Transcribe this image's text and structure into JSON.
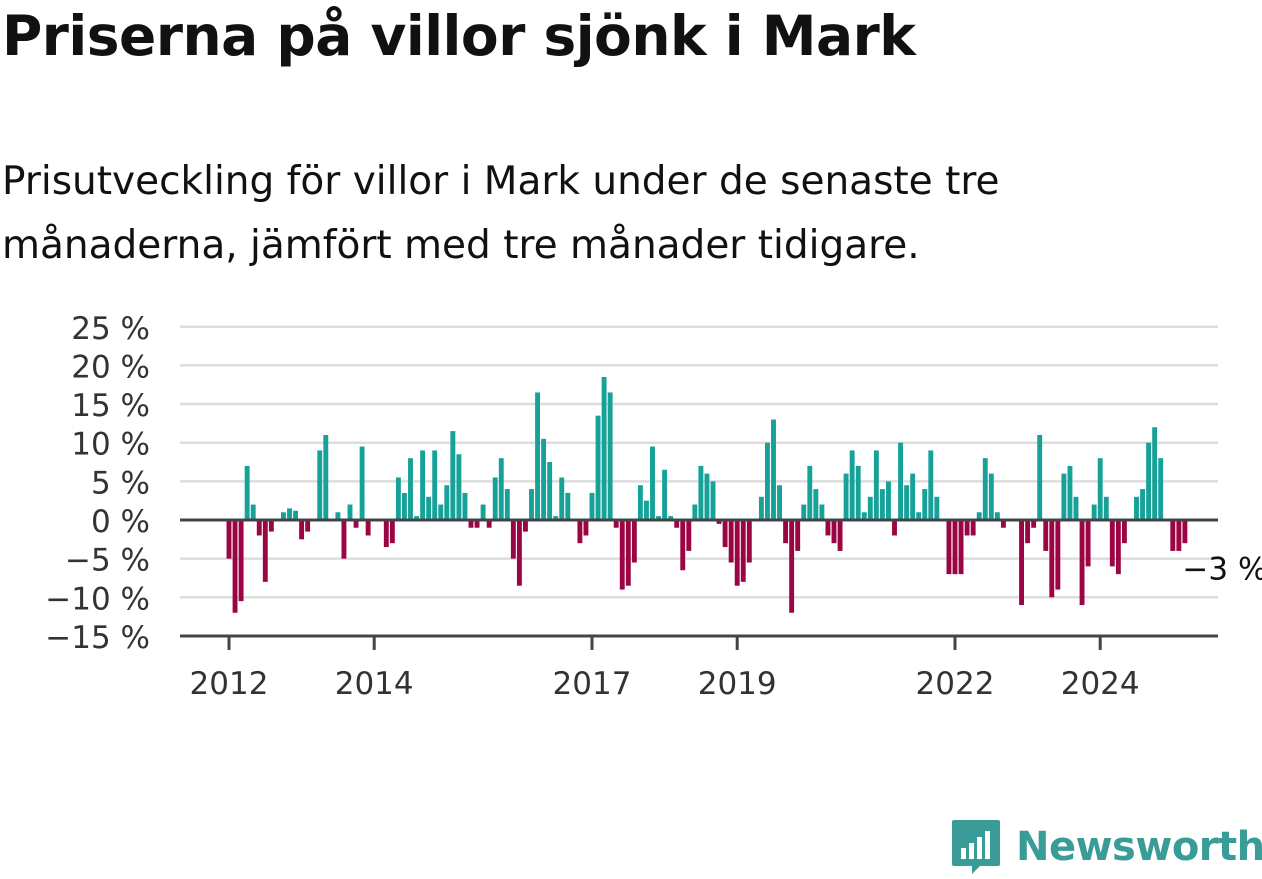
{
  "title": "Priserna på villor sjönk i Mark",
  "subtitle": "Prisutveckling för villor i Mark under de senaste tre månaderna, jämfört med tre månader tidigare.",
  "brand": {
    "name": "Newsworthy",
    "color": "#3a9c97"
  },
  "colors": {
    "positive": "#16a199",
    "negative": "#9b0544",
    "grid": "#dddddd",
    "axis": "#444444"
  },
  "chart_data": {
    "type": "bar",
    "x_ticks": [
      "2012",
      "2014",
      "2017",
      "2019",
      "2022",
      "2024"
    ],
    "y_ticks": [
      "25 %",
      "20 %",
      "15 %",
      "10 %",
      "5 %",
      "0 %",
      "−5 %",
      "−10 %",
      "−15 %"
    ],
    "ylim": [
      -15,
      25
    ],
    "grid": true,
    "last_label": "−3 %",
    "start": "2012-01",
    "frequency": "monthly",
    "values": [
      -5,
      -12,
      -10.5,
      7,
      2,
      -2,
      -8,
      -1.5,
      0,
      1,
      1.5,
      1.2,
      -2.5,
      -1.5,
      0,
      9,
      11,
      0,
      1,
      -5,
      2,
      -1,
      9.5,
      -2,
      0,
      0,
      -3.5,
      -3,
      5.5,
      3.5,
      8,
      0.5,
      9,
      3,
      9,
      2,
      4.5,
      11.5,
      8.5,
      3.5,
      -1,
      -1,
      2,
      -1,
      5.5,
      8,
      4,
      -5,
      -8.5,
      -1.5,
      4,
      16.5,
      10.5,
      7.5,
      0.5,
      5.5,
      3.5,
      0,
      -3,
      -2,
      3.5,
      13.5,
      18.5,
      16.5,
      -1,
      -9,
      -8.5,
      -5.5,
      4.5,
      2.5,
      9.5,
      0.5,
      6.5,
      0.5,
      -1,
      -6.5,
      -4,
      2,
      7,
      6,
      5,
      -0.5,
      -3.5,
      -5.5,
      -8.5,
      -8,
      -5.5,
      0,
      3,
      10,
      13,
      4.5,
      -3,
      -12,
      -4,
      2,
      7,
      4,
      2,
      -2,
      -3,
      -4,
      6,
      9,
      7,
      1,
      3,
      9,
      4,
      5,
      -2,
      10,
      4.5,
      6,
      1,
      4,
      9,
      3,
      0,
      -7,
      -7,
      -7,
      -2,
      -2,
      1,
      8,
      6,
      1,
      -1,
      0,
      0,
      -11,
      -3,
      -1,
      11,
      -4,
      -10,
      -9,
      6,
      7,
      3,
      -11,
      -6,
      2,
      8,
      3,
      -6,
      -7,
      -3,
      0,
      3,
      4,
      10,
      12,
      8,
      0,
      -4,
      -4,
      -3
    ]
  }
}
